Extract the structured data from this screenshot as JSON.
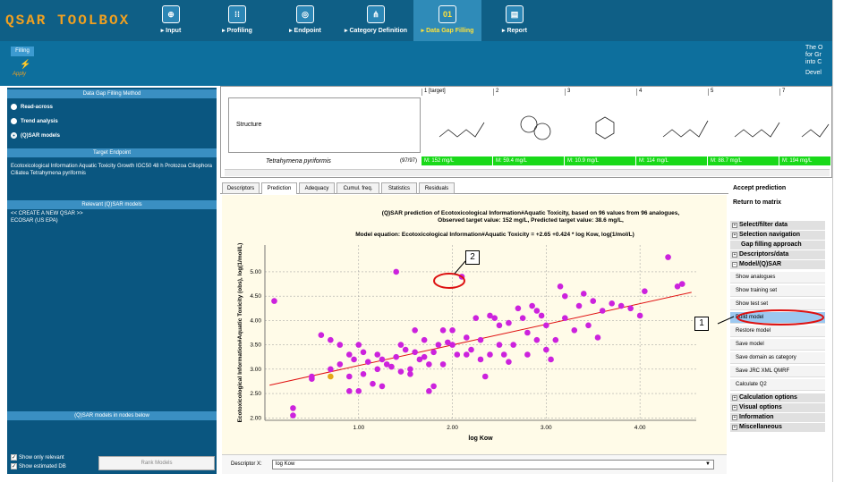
{
  "app": {
    "title": "QSAR TOOLBOX"
  },
  "nav": [
    {
      "label": "▸ Input",
      "icon": "input-icon"
    },
    {
      "label": "▸ Profiling",
      "icon": "profiling-icon"
    },
    {
      "label": "▸ Endpoint",
      "icon": "endpoint-icon"
    },
    {
      "label": "▸ Category Definition",
      "icon": "category-icon"
    },
    {
      "label": "▸ Data Gap Filling",
      "icon": "data-gap-icon"
    },
    {
      "label": "▸ Report",
      "icon": "report-icon"
    }
  ],
  "subbar": {
    "tab": "Filling",
    "apply": "Apply",
    "note": [
      "The O",
      "for Gr",
      "into C",
      "Devel"
    ]
  },
  "left": {
    "method_head": "Data Gap Filling Method",
    "methods": [
      "Read-across",
      "Trend analysis",
      "(Q)SAR models"
    ],
    "endpoint_head": "Target Endpoint",
    "endpoint_text": "Ecotoxicological Information Aquatic Toxicity Growth IGC50 48 h Protozoa Ciliophora Ciliatea Tetrahymena pyriformis",
    "relevant_head": "Relevant (Q)SAR models",
    "models": [
      "<< CREATE A NEW QSAR >>",
      "ECOSAR (US EPA)"
    ],
    "nodes_head": "(Q)SAR models in nodes below",
    "show_relevant": "Show only relevant",
    "show_estimated": "Show estimated DB",
    "rank_button": "Rank Models"
  },
  "matrix": {
    "cols": [
      "1 [target]",
      "2",
      "3",
      "4",
      "5",
      "6",
      "7"
    ],
    "structure_label": "Structure",
    "taxon": "Tetrahymena pyriformis",
    "count": "(97/97)",
    "values": [
      "M: 152 mg/L",
      "M: 59.4 mg/L",
      "M: 10.9 mg/L",
      "M: 114 mg/L",
      "M: 88.7 mg/L",
      "M: 194 mg/L"
    ]
  },
  "tabs": [
    "Descriptors",
    "Prediction",
    "Adequacy",
    "Cumul. freq.",
    "Statistics",
    "Residuals"
  ],
  "plot": {
    "title1": "(Q)SAR prediction of Ecotoxicological Information#Aquatic Toxicity, based on 96 values from 96 analogues,",
    "title2": "Observed target value: 152 mg/L, Predicted target value: 38.6 mg/L,",
    "equation": "Model equation:  Ecotoxicological Information#Aquatic Toxicity = +2.65 +0.424 * log Kow,  log(1/mol/L)"
  },
  "chart_data": {
    "type": "scatter",
    "xlabel": "log Kow",
    "ylabel": "Ecotoxicological Information#Aquatic Toxicity (obs), log(1/mol/L)",
    "xlim": [
      0.0,
      4.6
    ],
    "ylim": [
      1.95,
      5.55
    ],
    "xticks": [
      "1.00",
      "2.00",
      "3.00",
      "4.00"
    ],
    "yticks": [
      "2.00",
      "2.50",
      "3.00",
      "3.50",
      "4.00",
      "4.50",
      "5.00"
    ],
    "fit": {
      "intercept": 2.65,
      "slope": 0.424
    },
    "point_color": "#cc22dd",
    "target_color": "#e6a817",
    "target": {
      "x": 0.7,
      "y": 2.85
    },
    "points": [
      [
        0.1,
        4.4
      ],
      [
        0.3,
        2.2
      ],
      [
        0.3,
        2.05
      ],
      [
        0.5,
        2.85
      ],
      [
        0.5,
        2.8
      ],
      [
        0.6,
        3.7
      ],
      [
        0.7,
        3.6
      ],
      [
        0.8,
        3.5
      ],
      [
        0.8,
        3.1
      ],
      [
        0.9,
        2.85
      ],
      [
        0.9,
        2.55
      ],
      [
        1.0,
        2.55
      ],
      [
        1.05,
        2.9
      ],
      [
        1.1,
        3.15
      ],
      [
        1.2,
        3.0
      ],
      [
        1.25,
        3.2
      ],
      [
        1.3,
        3.1
      ],
      [
        1.35,
        3.05
      ],
      [
        1.4,
        3.25
      ],
      [
        1.4,
        5.0
      ],
      [
        1.45,
        3.5
      ],
      [
        1.5,
        3.4
      ],
      [
        1.55,
        3.0
      ],
      [
        1.6,
        3.8
      ],
      [
        1.65,
        3.2
      ],
      [
        1.7,
        3.25
      ],
      [
        1.75,
        3.1
      ],
      [
        1.75,
        2.55
      ],
      [
        1.8,
        3.35
      ],
      [
        1.85,
        3.5
      ],
      [
        1.9,
        3.1
      ],
      [
        1.9,
        3.8
      ],
      [
        1.95,
        3.55
      ],
      [
        2.0,
        3.5
      ],
      [
        2.05,
        3.3
      ],
      [
        2.1,
        4.9
      ],
      [
        2.15,
        3.65
      ],
      [
        2.2,
        3.4
      ],
      [
        2.25,
        4.05
      ],
      [
        2.3,
        3.6
      ],
      [
        2.35,
        2.85
      ],
      [
        2.4,
        3.3
      ],
      [
        2.45,
        4.05
      ],
      [
        2.5,
        3.9
      ],
      [
        2.55,
        3.3
      ],
      [
        2.6,
        3.15
      ],
      [
        2.65,
        3.5
      ],
      [
        2.7,
        4.25
      ],
      [
        2.75,
        4.05
      ],
      [
        2.8,
        3.75
      ],
      [
        2.85,
        4.3
      ],
      [
        2.9,
        4.2
      ],
      [
        2.95,
        4.1
      ],
      [
        3.0,
        3.4
      ],
      [
        3.05,
        3.2
      ],
      [
        3.1,
        3.6
      ],
      [
        3.2,
        4.05
      ],
      [
        3.3,
        3.8
      ],
      [
        3.4,
        4.55
      ],
      [
        3.5,
        4.4
      ],
      [
        3.55,
        3.65
      ],
      [
        3.6,
        4.2
      ],
      [
        3.7,
        4.35
      ],
      [
        3.9,
        4.25
      ],
      [
        4.0,
        4.1
      ],
      [
        4.05,
        4.6
      ],
      [
        4.3,
        5.3
      ],
      [
        4.4,
        4.7
      ],
      [
        4.45,
        4.75
      ],
      [
        3.8,
        4.3
      ],
      [
        3.2,
        4.5
      ],
      [
        1.0,
        3.5
      ],
      [
        0.9,
        3.3
      ],
      [
        1.15,
        2.7
      ],
      [
        1.25,
        2.65
      ],
      [
        2.0,
        3.8
      ],
      [
        2.15,
        3.3
      ],
      [
        2.6,
        3.95
      ],
      [
        3.15,
        4.7
      ],
      [
        3.45,
        3.9
      ],
      [
        1.6,
        3.35
      ],
      [
        1.7,
        3.6
      ],
      [
        2.3,
        3.2
      ],
      [
        1.8,
        2.65
      ],
      [
        0.95,
        3.2
      ],
      [
        1.05,
        3.35
      ],
      [
        2.5,
        3.5
      ],
      [
        2.9,
        3.6
      ],
      [
        3.0,
        3.9
      ],
      [
        1.45,
        2.95
      ],
      [
        1.55,
        2.9
      ],
      [
        1.2,
        3.3
      ],
      [
        2.4,
        4.1
      ],
      [
        2.8,
        3.3
      ],
      [
        3.35,
        4.3
      ],
      [
        0.7,
        3.0
      ]
    ]
  },
  "descriptor": {
    "label": "Descriptor X:",
    "value": "log Kow"
  },
  "right": {
    "accept": "Accept prediction",
    "return": "Return to matrix",
    "sections_top": [
      "Select/filter data",
      "Selection navigation"
    ],
    "gap_approach": "Gap filling approach",
    "desc_data": "Descriptors/data",
    "model_sec": "Model/(Q)SAR",
    "items": [
      "Show analogues",
      "Show training set",
      "Show test set",
      "Build model",
      "Restore model",
      "Save model",
      "Save domain as category",
      "Save JRC XML QMRF",
      "Calculate Q2"
    ],
    "sections_bottom": [
      "Calculation options",
      "Visual options",
      "Information",
      "Miscellaneous"
    ]
  },
  "callouts": [
    "1",
    "2"
  ]
}
